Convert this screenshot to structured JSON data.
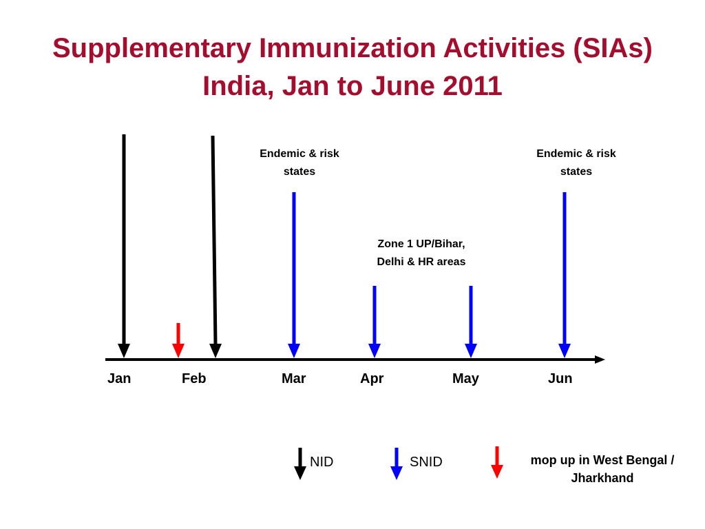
{
  "title": {
    "line1": "Supplementary Immunization Activities (SIAs)",
    "line2": "India, Jan to June 2011"
  },
  "colors": {
    "title": "#a50d2e",
    "nid": "#000000",
    "snid": "#0000ff",
    "mop_up": "#ff0000"
  },
  "months": [
    "Jan",
    "Feb",
    "Mar",
    "Apr",
    "May",
    "Jun"
  ],
  "annotations": {
    "mar": {
      "line1": "Endemic & risk",
      "line2": "states"
    },
    "jun": {
      "line1": "Endemic & risk",
      "line2": "states"
    },
    "apr_may": {
      "line1": "Zone 1 UP/Bihar,",
      "line2": "Delhi & HR areas"
    }
  },
  "events": [
    {
      "type": "NID",
      "month": "Jan"
    },
    {
      "type": "mop up",
      "month": "Jan-Feb"
    },
    {
      "type": "NID",
      "month": "Feb"
    },
    {
      "type": "SNID",
      "month": "Mar"
    },
    {
      "type": "SNID",
      "month": "Apr"
    },
    {
      "type": "SNID",
      "month": "May"
    },
    {
      "type": "SNID",
      "month": "Jun"
    }
  ],
  "legend": {
    "nid": "NID",
    "snid": "SNID",
    "mop_up_line1": "mop up in West Bengal /",
    "mop_up_line2": "Jharkhand"
  }
}
